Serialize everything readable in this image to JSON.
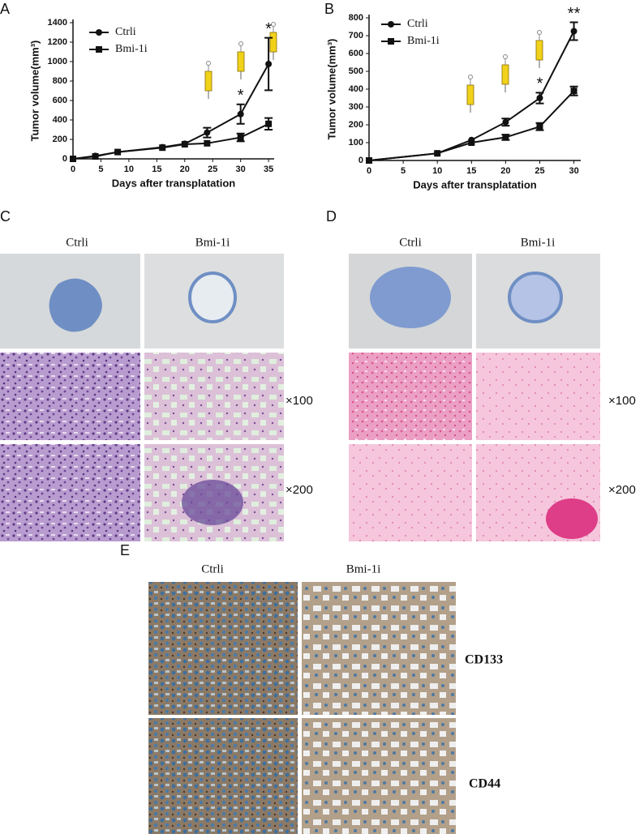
{
  "chart_data": [
    {
      "type": "line",
      "label": "A",
      "ylabel": "Tumor volume(mm³)",
      "xlabel": "Days after transplatation",
      "x": [
        0,
        4,
        8,
        16,
        20,
        24,
        30,
        35
      ],
      "series": [
        {
          "name": "Ctrli",
          "color": "#111111",
          "marker": "circle",
          "values": [
            0,
            30,
            70,
            120,
            155,
            270,
            460,
            975
          ],
          "errors": [
            null,
            null,
            null,
            null,
            null,
            50,
            100,
            270
          ]
        },
        {
          "name": "Bmi-1i",
          "color": "#111111",
          "marker": "square",
          "values": [
            0,
            25,
            70,
            115,
            150,
            160,
            220,
            360
          ],
          "errors": [
            null,
            null,
            null,
            null,
            null,
            null,
            40,
            60
          ]
        }
      ],
      "annotations": [
        {
          "text": "*",
          "x": 30
        },
        {
          "text": "*",
          "x": 35
        }
      ],
      "xlim": [
        0,
        36
      ],
      "ylim": [
        0,
        1400
      ],
      "xticks": [
        0,
        5,
        10,
        15,
        20,
        25,
        30,
        35
      ],
      "yticks": [
        0,
        200,
        400,
        600,
        800,
        1000,
        1200,
        1400
      ]
    },
    {
      "type": "line",
      "label": "B",
      "ylabel": "Tumor volume(mm³)",
      "xlabel": "Days after transplatation",
      "x": [
        0,
        10,
        15,
        20,
        25,
        30
      ],
      "series": [
        {
          "name": "Ctrli",
          "color": "#111111",
          "marker": "circle",
          "values": [
            0,
            40,
            115,
            215,
            350,
            725
          ],
          "errors": [
            null,
            null,
            null,
            20,
            30,
            50
          ]
        },
        {
          "name": "Bmi-1i",
          "color": "#111111",
          "marker": "square",
          "values": [
            0,
            40,
            100,
            130,
            190,
            390
          ],
          "errors": [
            null,
            null,
            null,
            15,
            20,
            25
          ]
        }
      ],
      "annotations": [
        {
          "text": "*",
          "x": 25
        },
        {
          "text": "**",
          "x": 30
        }
      ],
      "xlim": [
        0,
        31
      ],
      "ylim": [
        0,
        800
      ],
      "xticks": [
        0,
        5,
        10,
        15,
        20,
        25,
        30
      ],
      "yticks": [
        0,
        100,
        200,
        300,
        400,
        500,
        600,
        700,
        800
      ]
    }
  ],
  "panels": {
    "C": {
      "label": "C",
      "columns": [
        "Ctrli",
        "Bmi-1i"
      ],
      "rows": [
        "×100",
        "×200"
      ]
    },
    "D": {
      "label": "D",
      "columns": [
        "Ctrli",
        "Bmi-1i"
      ],
      "rows": [
        "×100",
        "×200"
      ]
    },
    "E": {
      "label": "E",
      "columns": [
        "Ctrli",
        "Bmi-1i"
      ],
      "rows": [
        "CD133",
        "CD44"
      ]
    }
  }
}
